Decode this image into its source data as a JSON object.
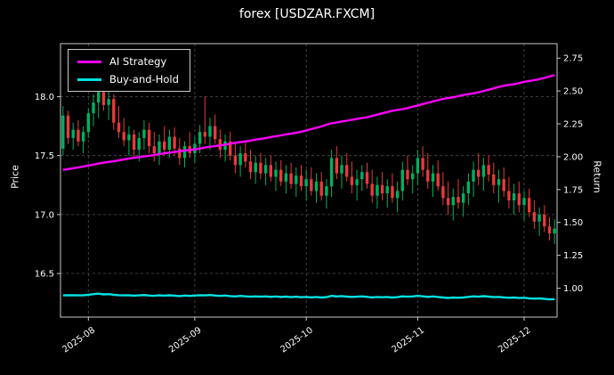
{
  "chart_data": {
    "type": "candlestick+line",
    "title": "forex [USDZAR.FXCM]",
    "price_axis": {
      "label": "Price",
      "ticks": [
        16.5,
        17.0,
        17.5,
        18.0
      ],
      "range": [
        16.13,
        18.45
      ]
    },
    "return_axis": {
      "label": "Return",
      "ticks": [
        1.0,
        1.25,
        1.5,
        1.75,
        2.0,
        2.25,
        2.5,
        2.75
      ],
      "range": [
        0.78,
        2.86
      ]
    },
    "x_ticks": [
      {
        "index": 5,
        "label": "2025-08"
      },
      {
        "index": 26,
        "label": "2025-09"
      },
      {
        "index": 48,
        "label": "2025-10"
      },
      {
        "index": 70,
        "label": "2025-11"
      },
      {
        "index": 91,
        "label": "2025-12"
      }
    ],
    "colors": {
      "up": "#00b060",
      "down": "#e83a3a",
      "grid": "#4f4f4f",
      "spine": "#c8c8c8",
      "text": "#ffffff",
      "background": "#000000"
    },
    "candles": [
      [
        17.56,
        17.92,
        17.5,
        17.84
      ],
      [
        17.84,
        17.88,
        17.6,
        17.65
      ],
      [
        17.65,
        17.78,
        17.55,
        17.72
      ],
      [
        17.72,
        17.8,
        17.58,
        17.62
      ],
      [
        17.62,
        17.75,
        17.52,
        17.7
      ],
      [
        17.7,
        17.9,
        17.65,
        17.86
      ],
      [
        17.86,
        18.02,
        17.75,
        17.95
      ],
      [
        17.95,
        18.1,
        17.82,
        18.04
      ],
      [
        18.04,
        18.12,
        17.88,
        17.93
      ],
      [
        17.93,
        18.05,
        17.8,
        17.98
      ],
      [
        17.98,
        18.02,
        17.72,
        17.78
      ],
      [
        17.78,
        17.92,
        17.65,
        17.7
      ],
      [
        17.7,
        17.82,
        17.58,
        17.63
      ],
      [
        17.63,
        17.75,
        17.5,
        17.68
      ],
      [
        17.68,
        17.72,
        17.48,
        17.55
      ],
      [
        17.55,
        17.7,
        17.45,
        17.65
      ],
      [
        17.65,
        17.8,
        17.55,
        17.72
      ],
      [
        17.72,
        17.78,
        17.52,
        17.58
      ],
      [
        17.58,
        17.7,
        17.45,
        17.52
      ],
      [
        17.52,
        17.68,
        17.42,
        17.62
      ],
      [
        17.62,
        17.75,
        17.5,
        17.55
      ],
      [
        17.55,
        17.72,
        17.48,
        17.66
      ],
      [
        17.66,
        17.74,
        17.5,
        17.56
      ],
      [
        17.56,
        17.65,
        17.42,
        17.48
      ],
      [
        17.48,
        17.62,
        17.4,
        17.58
      ],
      [
        17.58,
        17.7,
        17.48,
        17.52
      ],
      [
        17.52,
        17.66,
        17.44,
        17.6
      ],
      [
        17.6,
        17.76,
        17.52,
        17.7
      ],
      [
        17.7,
        18.0,
        17.6,
        17.66
      ],
      [
        17.66,
        17.82,
        17.55,
        17.75
      ],
      [
        17.75,
        17.85,
        17.6,
        17.64
      ],
      [
        17.64,
        17.72,
        17.48,
        17.55
      ],
      [
        17.55,
        17.68,
        17.45,
        17.62
      ],
      [
        17.62,
        17.7,
        17.46,
        17.5
      ],
      [
        17.5,
        17.6,
        17.35,
        17.42
      ],
      [
        17.42,
        17.58,
        17.32,
        17.52
      ],
      [
        17.52,
        17.62,
        17.4,
        17.45
      ],
      [
        17.45,
        17.55,
        17.3,
        17.36
      ],
      [
        17.36,
        17.5,
        17.26,
        17.44
      ],
      [
        17.44,
        17.52,
        17.3,
        17.35
      ],
      [
        17.35,
        17.48,
        17.25,
        17.42
      ],
      [
        17.42,
        17.5,
        17.28,
        17.32
      ],
      [
        17.32,
        17.45,
        17.2,
        17.38
      ],
      [
        17.38,
        17.46,
        17.24,
        17.28
      ],
      [
        17.28,
        17.42,
        17.18,
        17.35
      ],
      [
        17.35,
        17.44,
        17.22,
        17.26
      ],
      [
        17.26,
        17.4,
        17.15,
        17.33
      ],
      [
        17.33,
        17.42,
        17.2,
        17.24
      ],
      [
        17.24,
        17.38,
        17.12,
        17.3
      ],
      [
        17.3,
        17.4,
        17.16,
        17.2
      ],
      [
        17.2,
        17.35,
        17.1,
        17.28
      ],
      [
        17.28,
        17.36,
        17.12,
        17.16
      ],
      [
        17.16,
        17.3,
        17.05,
        17.24
      ],
      [
        17.24,
        17.55,
        17.15,
        17.48
      ],
      [
        17.48,
        17.58,
        17.3,
        17.35
      ],
      [
        17.35,
        17.5,
        17.22,
        17.42
      ],
      [
        17.42,
        17.52,
        17.28,
        17.32
      ],
      [
        17.32,
        17.45,
        17.18,
        17.25
      ],
      [
        17.25,
        17.38,
        17.12,
        17.3
      ],
      [
        17.3,
        17.42,
        17.2,
        17.36
      ],
      [
        17.36,
        17.44,
        17.22,
        17.26
      ],
      [
        17.26,
        17.38,
        17.1,
        17.16
      ],
      [
        17.16,
        17.32,
        17.05,
        17.25
      ],
      [
        17.25,
        17.36,
        17.12,
        17.18
      ],
      [
        17.18,
        17.3,
        17.06,
        17.24
      ],
      [
        17.24,
        17.35,
        17.1,
        17.14
      ],
      [
        17.14,
        17.28,
        17.02,
        17.2
      ],
      [
        17.2,
        17.45,
        17.12,
        17.38
      ],
      [
        17.38,
        17.5,
        17.25,
        17.3
      ],
      [
        17.3,
        17.42,
        17.18,
        17.35
      ],
      [
        17.35,
        17.55,
        17.25,
        17.48
      ],
      [
        17.48,
        17.58,
        17.32,
        17.38
      ],
      [
        17.38,
        17.52,
        17.22,
        17.28
      ],
      [
        17.28,
        17.42,
        17.15,
        17.35
      ],
      [
        17.35,
        17.46,
        17.2,
        17.24
      ],
      [
        17.24,
        17.36,
        17.08,
        17.14
      ],
      [
        17.14,
        17.28,
        17.0,
        17.08
      ],
      [
        17.08,
        17.22,
        16.95,
        17.15
      ],
      [
        17.15,
        17.3,
        17.05,
        17.1
      ],
      [
        17.1,
        17.24,
        16.98,
        17.18
      ],
      [
        17.18,
        17.35,
        17.08,
        17.28
      ],
      [
        17.28,
        17.45,
        17.15,
        17.38
      ],
      [
        17.38,
        17.52,
        17.25,
        17.32
      ],
      [
        17.32,
        17.48,
        17.2,
        17.42
      ],
      [
        17.42,
        17.5,
        17.28,
        17.34
      ],
      [
        17.34,
        17.44,
        17.18,
        17.25
      ],
      [
        17.25,
        17.38,
        17.1,
        17.3
      ],
      [
        17.3,
        17.4,
        17.15,
        17.2
      ],
      [
        17.2,
        17.32,
        17.05,
        17.12
      ],
      [
        17.12,
        17.26,
        17.0,
        17.18
      ],
      [
        17.18,
        17.28,
        17.02,
        17.08
      ],
      [
        17.08,
        17.2,
        16.95,
        17.14
      ],
      [
        17.14,
        17.22,
        16.98,
        17.02
      ],
      [
        17.02,
        17.12,
        16.88,
        16.94
      ],
      [
        16.94,
        17.06,
        16.82,
        17.0
      ],
      [
        17.0,
        17.08,
        16.85,
        16.9
      ],
      [
        16.9,
        16.98,
        16.78,
        16.84
      ],
      [
        16.84,
        16.96,
        16.75,
        16.88
      ]
    ],
    "series": [
      {
        "name": "AI Strategy",
        "axis": "return",
        "color": "#ff00ff",
        "values": [
          1.9,
          1.906,
          1.912,
          1.918,
          1.926,
          1.933,
          1.94,
          1.948,
          1.954,
          1.96,
          1.966,
          1.972,
          1.98,
          1.986,
          1.992,
          1.997,
          2.002,
          2.007,
          2.013,
          2.02,
          2.026,
          2.031,
          2.036,
          2.041,
          2.046,
          2.051,
          2.056,
          2.062,
          2.07,
          2.076,
          2.081,
          2.086,
          2.092,
          2.1,
          2.106,
          2.111,
          2.116,
          2.122,
          2.13,
          2.136,
          2.141,
          2.15,
          2.156,
          2.162,
          2.17,
          2.176,
          2.182,
          2.19,
          2.2,
          2.21,
          2.22,
          2.23,
          2.244,
          2.254,
          2.26,
          2.268,
          2.274,
          2.28,
          2.288,
          2.294,
          2.3,
          2.31,
          2.32,
          2.33,
          2.34,
          2.35,
          2.356,
          2.362,
          2.37,
          2.38,
          2.39,
          2.4,
          2.41,
          2.42,
          2.43,
          2.44,
          2.446,
          2.452,
          2.46,
          2.47,
          2.476,
          2.482,
          2.49,
          2.5,
          2.51,
          2.52,
          2.53,
          2.54,
          2.546,
          2.552,
          2.56,
          2.57,
          2.576,
          2.582,
          2.59,
          2.6,
          2.61,
          2.62
        ]
      },
      {
        "name": "Buy-and-Hold",
        "axis": "return",
        "color": "#00e1e1",
        "values": [
          0.945,
          0.946,
          0.947,
          0.945,
          0.946,
          0.95,
          0.955,
          0.958,
          0.953,
          0.955,
          0.95,
          0.947,
          0.945,
          0.946,
          0.943,
          0.945,
          0.948,
          0.944,
          0.942,
          0.945,
          0.943,
          0.946,
          0.943,
          0.94,
          0.944,
          0.941,
          0.944,
          0.947,
          0.945,
          0.948,
          0.944,
          0.941,
          0.944,
          0.94,
          0.937,
          0.941,
          0.938,
          0.935,
          0.938,
          0.935,
          0.938,
          0.934,
          0.937,
          0.933,
          0.936,
          0.932,
          0.935,
          0.931,
          0.934,
          0.93,
          0.933,
          0.929,
          0.932,
          0.942,
          0.937,
          0.94,
          0.936,
          0.933,
          0.935,
          0.938,
          0.934,
          0.93,
          0.933,
          0.931,
          0.933,
          0.929,
          0.932,
          0.938,
          0.935,
          0.937,
          0.942,
          0.938,
          0.934,
          0.937,
          0.933,
          0.929,
          0.926,
          0.929,
          0.927,
          0.93,
          0.934,
          0.938,
          0.935,
          0.939,
          0.936,
          0.932,
          0.934,
          0.93,
          0.927,
          0.929,
          0.925,
          0.927,
          0.923,
          0.92,
          0.922,
          0.918,
          0.915,
          0.917
        ]
      }
    ]
  }
}
